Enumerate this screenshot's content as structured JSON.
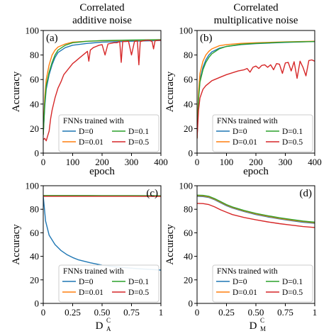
{
  "titles": {
    "left": [
      "Correlated",
      "additive noise"
    ],
    "right": [
      "Correlated",
      "multiplicative noise"
    ]
  },
  "legend": {
    "title": "FNNs trained with",
    "entries": [
      "D=0",
      "D=0.1",
      "D=0.01",
      "D=0.5"
    ]
  },
  "colors": {
    "D=0": "#1f77b4",
    "D=0.1": "#2ca02c",
    "D=0.01": "#ff7f0e",
    "D=0.5": "#d62728"
  },
  "chart_data": [
    {
      "panel": "(a)",
      "type": "line",
      "xlabel": "epoch",
      "ylabel": "Accuracy",
      "xlim": [
        0,
        400
      ],
      "ylim": [
        0,
        100
      ],
      "xticks": [
        "0",
        "100",
        "200",
        "300",
        "400"
      ],
      "yticks": [
        "0",
        "20",
        "40",
        "60",
        "80",
        "100"
      ],
      "series": [
        {
          "name": "D=0",
          "x": [
            0,
            5,
            10,
            20,
            30,
            40,
            50,
            75,
            100,
            150,
            200,
            300,
            400
          ],
          "y": [
            15,
            38,
            52,
            64,
            72,
            78,
            82,
            86,
            88,
            89.5,
            90.5,
            91.2,
            91.8
          ]
        },
        {
          "name": "D=0.01",
          "x": [
            0,
            5,
            10,
            20,
            30,
            40,
            50,
            75,
            100,
            150,
            200,
            300,
            400
          ],
          "y": [
            15,
            45,
            60,
            72,
            80,
            84,
            86.5,
            89,
            90.5,
            91.2,
            91.6,
            92,
            92.3
          ]
        },
        {
          "name": "D=0.1",
          "x": [
            0,
            5,
            10,
            20,
            30,
            40,
            50,
            75,
            100,
            150,
            200,
            300,
            400
          ],
          "y": [
            15,
            40,
            55,
            66,
            74,
            80,
            84,
            88,
            90,
            91.2,
            91.8,
            92.2,
            92.5
          ]
        },
        {
          "name": "D=0.5",
          "x": [
            0,
            5,
            10,
            15,
            20,
            25,
            30,
            40,
            50,
            60,
            70,
            80,
            90,
            100,
            110,
            120,
            130,
            140,
            150,
            155,
            160,
            170,
            180,
            190,
            200,
            210,
            220,
            230,
            240,
            250,
            260,
            265,
            270,
            280,
            290,
            300,
            310,
            320,
            325,
            330,
            340,
            350,
            360,
            370,
            375,
            380,
            390,
            400
          ],
          "y": [
            11,
            12,
            10,
            14,
            18,
            28,
            35,
            45,
            53,
            58,
            64,
            67,
            70,
            73,
            75,
            77,
            79,
            81,
            83,
            75,
            84,
            86,
            87,
            88,
            88.5,
            80,
            89,
            89.5,
            90,
            90,
            91,
            74,
            91,
            91,
            91.2,
            80,
            91,
            91.5,
            72,
            91,
            91.5,
            92,
            92,
            91,
            85,
            91.5,
            92,
            92
          ]
        }
      ]
    },
    {
      "panel": "(b)",
      "type": "line",
      "xlabel": "epoch",
      "ylabel": "Accuracy",
      "xlim": [
        0,
        400
      ],
      "ylim": [
        0,
        100
      ],
      "xticks": [
        "0",
        "100",
        "200",
        "300",
        "400"
      ],
      "yticks": [
        "0",
        "20",
        "40",
        "60",
        "80",
        "100"
      ],
      "series": [
        {
          "name": "D=0",
          "x": [
            0,
            5,
            10,
            20,
            30,
            40,
            50,
            75,
            100,
            150,
            200,
            300,
            400
          ],
          "y": [
            12,
            45,
            60,
            70,
            76,
            80,
            82.5,
            85.5,
            87,
            88.5,
            89.3,
            90.3,
            91
          ]
        },
        {
          "name": "D=0.01",
          "x": [
            0,
            5,
            10,
            20,
            30,
            40,
            50,
            75,
            100,
            150,
            200,
            300,
            400
          ],
          "y": [
            12,
            50,
            65,
            75,
            80,
            83,
            85,
            87.5,
            88.5,
            89.5,
            90,
            90.7,
            91.2
          ]
        },
        {
          "name": "D=0.1",
          "x": [
            0,
            5,
            10,
            20,
            30,
            40,
            50,
            75,
            100,
            150,
            200,
            300,
            400
          ],
          "y": [
            12,
            44,
            58,
            68,
            74,
            78,
            81,
            85,
            87,
            88.7,
            89.5,
            90.5,
            91
          ]
        },
        {
          "name": "D=0.5",
          "x": [
            0,
            5,
            10,
            20,
            30,
            40,
            50,
            60,
            80,
            100,
            120,
            140,
            160,
            170,
            180,
            190,
            200,
            210,
            220,
            230,
            240,
            250,
            260,
            270,
            280,
            290,
            300,
            310,
            320,
            330,
            340,
            350,
            360,
            370,
            380,
            390,
            400
          ],
          "y": [
            12,
            35,
            45,
            52,
            55,
            57,
            59,
            60,
            62,
            64,
            65.5,
            67,
            68,
            69,
            66,
            70,
            71,
            69,
            71.5,
            72,
            70,
            72,
            68,
            73,
            72.5,
            65,
            73.5,
            74,
            67,
            74.5,
            61,
            75,
            70,
            63,
            75.5,
            76,
            75
          ]
        }
      ]
    },
    {
      "panel": "(c)",
      "type": "line",
      "xlabel": "D",
      "xlabel_sup": "C",
      "xlabel_sub": "A",
      "ylabel": "Accuracy",
      "xlim": [
        0,
        1
      ],
      "ylim": [
        0,
        100
      ],
      "xticks": [
        "0",
        "0.25",
        "0.50",
        "0.75",
        "1"
      ],
      "yticks": [
        "0",
        "20",
        "40",
        "60",
        "80",
        "100"
      ],
      "series": [
        {
          "name": "D=0",
          "x": [
            0,
            0.02,
            0.05,
            0.1,
            0.15,
            0.2,
            0.25,
            0.3,
            0.4,
            0.5,
            0.6,
            0.7,
            0.8,
            0.9,
            1.0
          ],
          "y": [
            91,
            70,
            58,
            50,
            45,
            41.5,
            39,
            37,
            34.5,
            32.5,
            31.2,
            30.3,
            29.5,
            28.9,
            28.3
          ]
        },
        {
          "name": "D=0.01",
          "x": [
            0,
            0.25,
            0.5,
            0.75,
            1.0
          ],
          "y": [
            91.5,
            91.5,
            91.4,
            91.3,
            91.2
          ]
        },
        {
          "name": "D=0.1",
          "x": [
            0,
            0.25,
            0.5,
            0.75,
            1.0
          ],
          "y": [
            91.7,
            91.7,
            91.6,
            91.6,
            91.5
          ]
        },
        {
          "name": "D=0.5",
          "x": [
            0,
            0.25,
            0.5,
            0.75,
            1.0
          ],
          "y": [
            91,
            91,
            91,
            91,
            90.9
          ]
        }
      ]
    },
    {
      "panel": "(d)",
      "type": "line",
      "xlabel": "D",
      "xlabel_sup": "C",
      "xlabel_sub": "M",
      "ylabel": "Accuracy",
      "xlim": [
        0,
        1
      ],
      "ylim": [
        0,
        100
      ],
      "xticks": [
        "0",
        "0.25",
        "0.50",
        "0.75",
        "1"
      ],
      "yticks": [
        "0",
        "20",
        "40",
        "60",
        "80",
        "100"
      ],
      "series": [
        {
          "name": "D=0",
          "x": [
            0,
            0.05,
            0.1,
            0.15,
            0.2,
            0.25,
            0.3,
            0.4,
            0.5,
            0.6,
            0.7,
            0.8,
            0.9,
            1.0
          ],
          "y": [
            91,
            90.8,
            90,
            88,
            85.5,
            83,
            81,
            78,
            75.5,
            73.5,
            71.8,
            70.3,
            69,
            68
          ]
        },
        {
          "name": "D=0.01",
          "x": [
            0,
            0.05,
            0.1,
            0.15,
            0.2,
            0.25,
            0.3,
            0.4,
            0.5,
            0.6,
            0.7,
            0.8,
            0.9,
            1.0
          ],
          "y": [
            91.5,
            91.3,
            90.5,
            88.5,
            86,
            83.5,
            81.5,
            78.5,
            76,
            74,
            72.3,
            70.8,
            69.5,
            68.5
          ]
        },
        {
          "name": "D=0.1",
          "x": [
            0,
            0.05,
            0.1,
            0.15,
            0.2,
            0.25,
            0.3,
            0.4,
            0.5,
            0.6,
            0.7,
            0.8,
            0.9,
            1.0
          ],
          "y": [
            92,
            91.8,
            91,
            89,
            86.5,
            84,
            82,
            79,
            76.5,
            74.5,
            72.8,
            71.3,
            70,
            69
          ]
        },
        {
          "name": "D=0.5",
          "x": [
            0,
            0.05,
            0.1,
            0.15,
            0.2,
            0.25,
            0.3,
            0.4,
            0.5,
            0.6,
            0.7,
            0.8,
            0.9,
            1.0
          ],
          "y": [
            85,
            84.8,
            84,
            82,
            79.5,
            77.5,
            75.5,
            73,
            71,
            69.3,
            67.8,
            66.5,
            65.3,
            64.5
          ]
        }
      ]
    }
  ]
}
